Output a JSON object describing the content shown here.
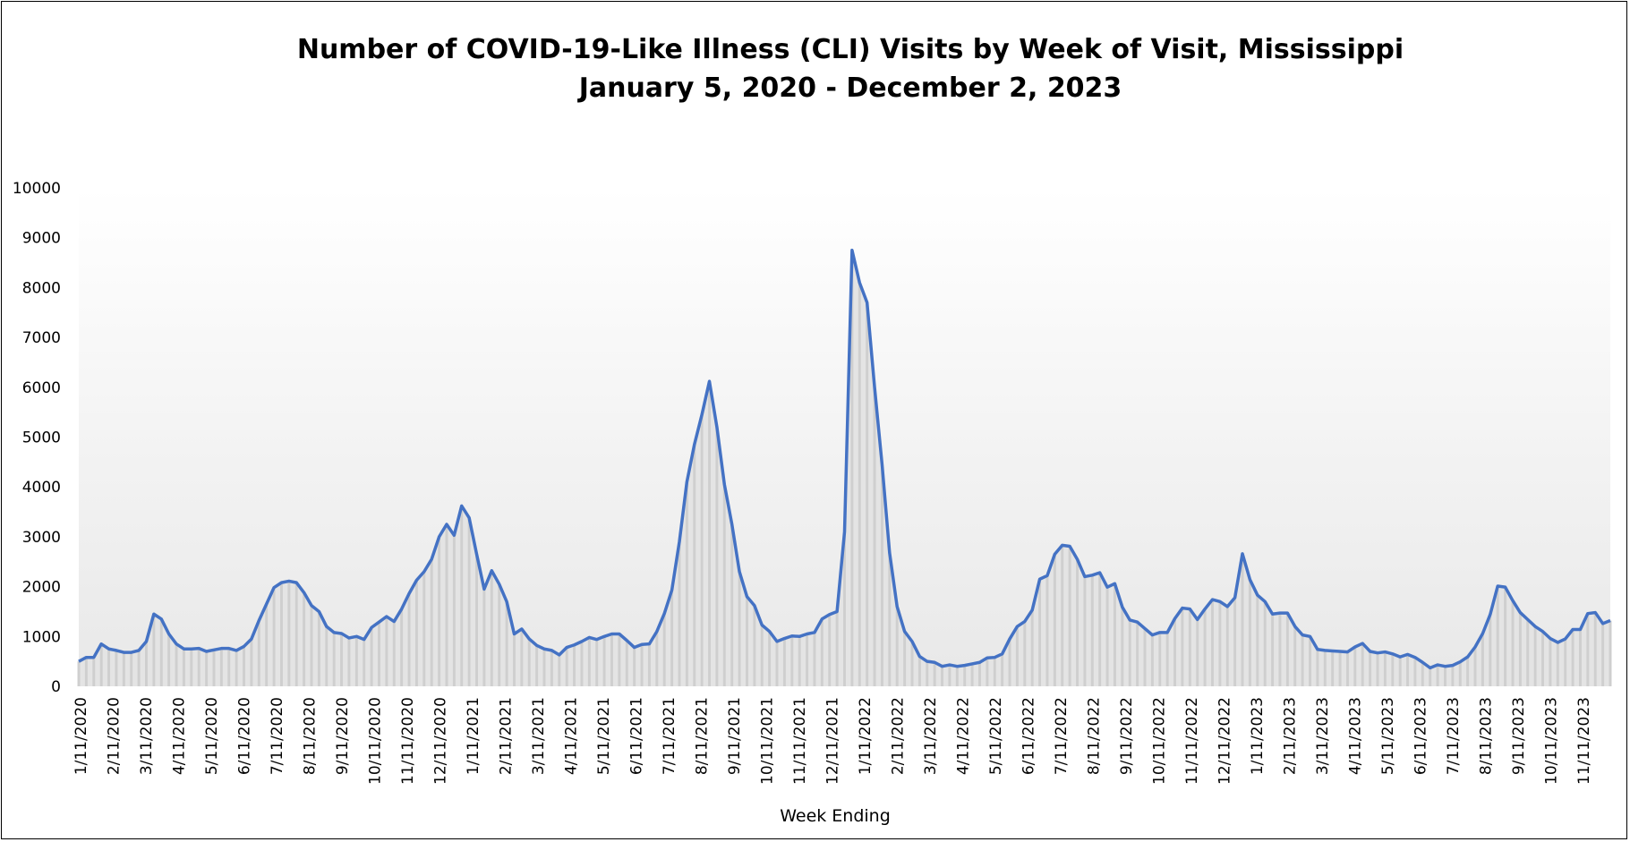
{
  "chart_data": {
    "type": "area",
    "title": "Number of COVID-19-Like Illness (CLI) Visits by Week of Visit, Mississippi",
    "subtitle": "January 5, 2020 - December 2, 2023",
    "xlabel": "Week Ending",
    "ylabel": "",
    "ylim": [
      0,
      10000
    ],
    "y_ticks": [
      0,
      1000,
      2000,
      3000,
      4000,
      5000,
      6000,
      7000,
      8000,
      9000,
      10000
    ],
    "x_tick_labels": [
      "1/11/2020",
      "2/11/2020",
      "3/11/2020",
      "4/11/2020",
      "5/11/2020",
      "6/11/2020",
      "7/11/2020",
      "8/11/2020",
      "9/11/2020",
      "10/11/2020",
      "11/11/2020",
      "12/11/2020",
      "1/11/2021",
      "2/11/2021",
      "3/11/2021",
      "4/11/2021",
      "5/11/2021",
      "6/11/2021",
      "7/11/2021",
      "8/11/2021",
      "9/11/2021",
      "10/11/2021",
      "11/11/2021",
      "12/11/2021",
      "1/11/2022",
      "2/11/2022",
      "3/11/2022",
      "4/11/2022",
      "5/11/2022",
      "6/11/2022",
      "7/11/2022",
      "8/11/2022",
      "9/11/2022",
      "10/11/2022",
      "11/11/2022",
      "12/11/2022",
      "1/11/2023",
      "2/11/2023",
      "3/11/2023",
      "4/11/2023",
      "5/11/2023",
      "6/11/2023",
      "7/11/2023",
      "8/11/2023",
      "9/11/2023",
      "10/11/2023",
      "11/11/2023"
    ],
    "grid": false,
    "legend": "none",
    "line_color": "#4472c4",
    "fill_color": "#e4e4e4",
    "series": [
      {
        "values": [
          500,
          580,
          580,
          850,
          750,
          720,
          680,
          680,
          720,
          900,
          1450,
          1350,
          1050,
          850,
          750,
          750,
          760,
          700,
          730,
          760,
          760,
          720,
          800,
          950,
          1320,
          1650,
          1980,
          2080,
          2110,
          2080,
          1880,
          1620,
          1500,
          1200,
          1080,
          1060,
          970,
          1000,
          940,
          1180,
          1290,
          1400,
          1300,
          1550,
          1860,
          2130,
          2300,
          2550,
          3000,
          3250,
          3030,
          3620,
          3380,
          2650,
          1950,
          2320,
          2050,
          1700,
          1050,
          1150,
          950,
          820,
          750,
          720,
          630,
          780,
          830,
          900,
          980,
          940,
          1000,
          1050,
          1050,
          920,
          780,
          840,
          850,
          1100,
          1460,
          1930,
          2900,
          4100,
          4850,
          5450,
          6120,
          5200,
          4050,
          3250,
          2300,
          1800,
          1620,
          1230,
          1100,
          900,
          960,
          1010,
          1000,
          1050,
          1080,
          1350,
          1440,
          1500,
          3100,
          8750,
          8100,
          7700,
          6000,
          4450,
          2680,
          1600,
          1100,
          900,
          600,
          500,
          480,
          400,
          430,
          400,
          420,
          450,
          480,
          570,
          580,
          650,
          950,
          1200,
          1300,
          1530,
          2150,
          2220,
          2650,
          2830,
          2810,
          2550,
          2200,
          2230,
          2280,
          1990,
          2060,
          1590,
          1330,
          1290,
          1160,
          1030,
          1080,
          1080,
          1360,
          1570,
          1550,
          1340,
          1550,
          1740,
          1700,
          1600,
          1780,
          2660,
          2140,
          1830,
          1700,
          1450,
          1470,
          1470,
          1200,
          1030,
          1000,
          740,
          720,
          710,
          700,
          690,
          790,
          860,
          700,
          670,
          690,
          650,
          590,
          640,
          580,
          480,
          370,
          430,
          400,
          420,
          490,
          590,
          790,
          1060,
          1440,
          2010,
          1990,
          1720,
          1480,
          1340,
          1200,
          1100,
          960,
          880,
          950,
          1140,
          1140,
          1460,
          1480,
          1260,
          1320
        ]
      }
    ]
  }
}
